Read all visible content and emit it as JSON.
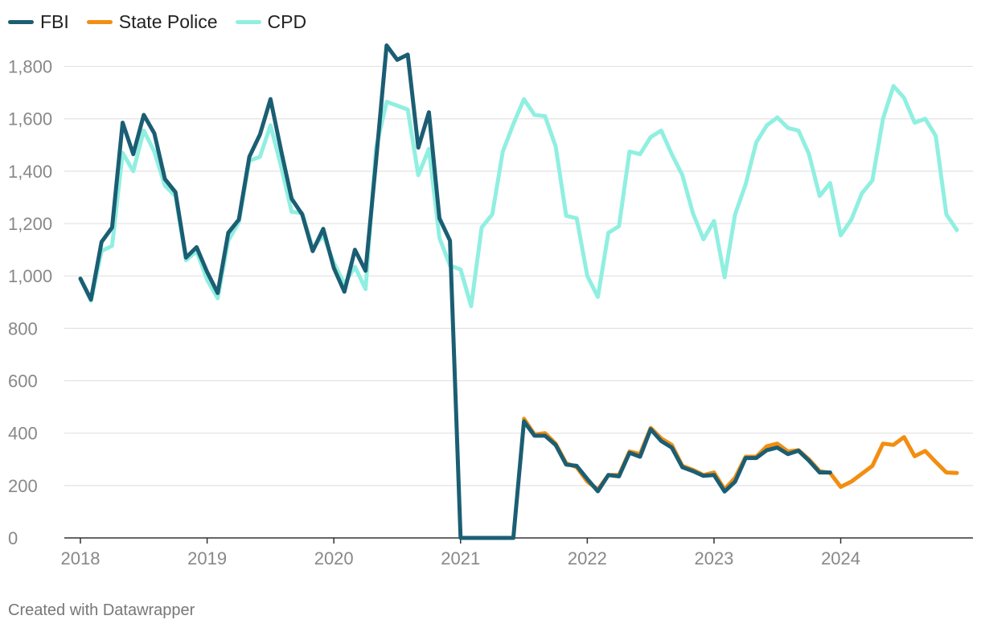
{
  "chart_data": {
    "type": "line",
    "title": "",
    "xlabel": "",
    "ylabel": "",
    "ylim": [
      0,
      1900
    ],
    "yticks": [
      0,
      200,
      400,
      600,
      800,
      1000,
      1200,
      1400,
      1600,
      1800
    ],
    "ytick_labels": [
      "0",
      "200",
      "400",
      "600",
      "800",
      "1,000",
      "1,200",
      "1,400",
      "1,600",
      "1,800"
    ],
    "xticks": [
      "2018",
      "2019",
      "2020",
      "2021",
      "2022",
      "2023",
      "2024"
    ],
    "x_unit": "month index starting Jan 2018",
    "legend_position": "top-left",
    "series": [
      {
        "name": "FBI",
        "color": "#1b5e73",
        "start_index": 0,
        "values": [
          990,
          910,
          1130,
          1185,
          1585,
          1465,
          1615,
          1545,
          1370,
          1320,
          1070,
          1110,
          1015,
          935,
          1165,
          1215,
          1455,
          1540,
          1675,
          1480,
          1295,
          1235,
          1095,
          1180,
          1030,
          940,
          1100,
          1020,
          1440,
          1880,
          1825,
          1845,
          1490,
          1625,
          1220,
          1135,
          0,
          0,
          0,
          0,
          0,
          0,
          445,
          390,
          390,
          355,
          280,
          275,
          225,
          178,
          240,
          235,
          325,
          310,
          415,
          370,
          345,
          270,
          255,
          237,
          240,
          177,
          215,
          305,
          305,
          335,
          345,
          320,
          333,
          295,
          250,
          250
        ]
      },
      {
        "name": "State Police",
        "color": "#f28e12",
        "start_index": 42,
        "values": [
          455,
          395,
          400,
          360,
          285,
          270,
          215,
          185,
          240,
          240,
          330,
          320,
          420,
          380,
          355,
          275,
          260,
          240,
          250,
          185,
          230,
          310,
          310,
          350,
          360,
          330,
          335,
          300,
          255,
          248,
          195,
          215,
          245,
          275,
          360,
          355,
          385,
          312,
          332,
          290,
          250,
          248
        ]
      },
      {
        "name": "CPD",
        "color": "#90efe0",
        "start_index": 0,
        "values": [
          990,
          905,
          1095,
          1115,
          1470,
          1400,
          1555,
          1475,
          1345,
          1305,
          1060,
          1095,
          985,
          915,
          1135,
          1205,
          1440,
          1455,
          1575,
          1420,
          1245,
          1240,
          1105,
          1155,
          1050,
          970,
          1035,
          950,
          1490,
          1665,
          1650,
          1635,
          1385,
          1485,
          1145,
          1040,
          1025,
          885,
          1185,
          1235,
          1475,
          1580,
          1675,
          1615,
          1610,
          1495,
          1230,
          1220,
          1000,
          920,
          1165,
          1190,
          1475,
          1465,
          1530,
          1555,
          1465,
          1385,
          1240,
          1140,
          1210,
          995,
          1235,
          1350,
          1510,
          1575,
          1605,
          1565,
          1555,
          1465,
          1305,
          1355,
          1155,
          1215,
          1315,
          1365,
          1600,
          1725,
          1680,
          1585,
          1600,
          1535,
          1235,
          1175
        ]
      }
    ]
  },
  "credit": "Created with Datawrapper"
}
